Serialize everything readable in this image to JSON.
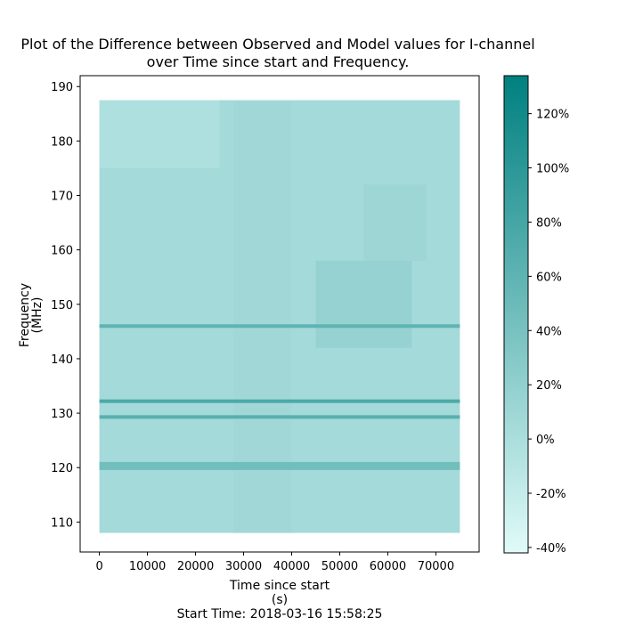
{
  "chart_data": {
    "type": "heatmap",
    "title_line1": "Plot of the Difference between Observed and Model values for I-channel",
    "title_line2": "over Time since start and Frequency.",
    "xlabel_line1": "Time since start",
    "xlabel_line2": "(s)",
    "ylabel_line1": "Frequency",
    "ylabel_line2": "(MHz)",
    "footer": "Start Time: 2018-03-16 15:58:25",
    "xlim": [
      -4000,
      79000
    ],
    "ylim": [
      104.5,
      192
    ],
    "data_extent": {
      "x": [
        0,
        75000
      ],
      "y": [
        108,
        187.5
      ]
    },
    "x_ticks": [
      0,
      10000,
      20000,
      30000,
      40000,
      50000,
      60000,
      70000
    ],
    "x_tick_labels": [
      "0",
      "10000",
      "20000",
      "30000",
      "40000",
      "50000",
      "60000",
      "70000"
    ],
    "y_ticks": [
      110,
      120,
      130,
      140,
      150,
      160,
      170,
      180,
      190
    ],
    "y_tick_labels": [
      "110",
      "120",
      "130",
      "140",
      "150",
      "160",
      "170",
      "180",
      "190"
    ],
    "colorbar": {
      "range": [
        -42,
        134
      ],
      "ticks": [
        -40,
        -20,
        0,
        20,
        40,
        60,
        80,
        100,
        120
      ],
      "tick_labels": [
        "-40%",
        "-20%",
        "0%",
        "20%",
        "40%",
        "60%",
        "80%",
        "100%",
        "120%"
      ],
      "color_low": "#e0fbf9",
      "color_high": "#008080"
    },
    "background_value": 5,
    "bands": [
      {
        "freq": 146.0,
        "value": 60
      },
      {
        "freq": 132.2,
        "value": 75
      },
      {
        "freq": 129.3,
        "value": 65
      },
      {
        "freq": 120.3,
        "value": 45
      }
    ],
    "regions": [
      {
        "t": [
          45000,
          65000
        ],
        "f": [
          142,
          158
        ],
        "value": 25
      },
      {
        "t": [
          55000,
          68000
        ],
        "f": [
          158,
          172
        ],
        "value": 15
      },
      {
        "t": [
          28000,
          40000
        ],
        "f": [
          108,
          187.5
        ],
        "value": 10
      },
      {
        "t": [
          0,
          25000
        ],
        "f": [
          175,
          187.5
        ],
        "value": -10
      }
    ]
  }
}
